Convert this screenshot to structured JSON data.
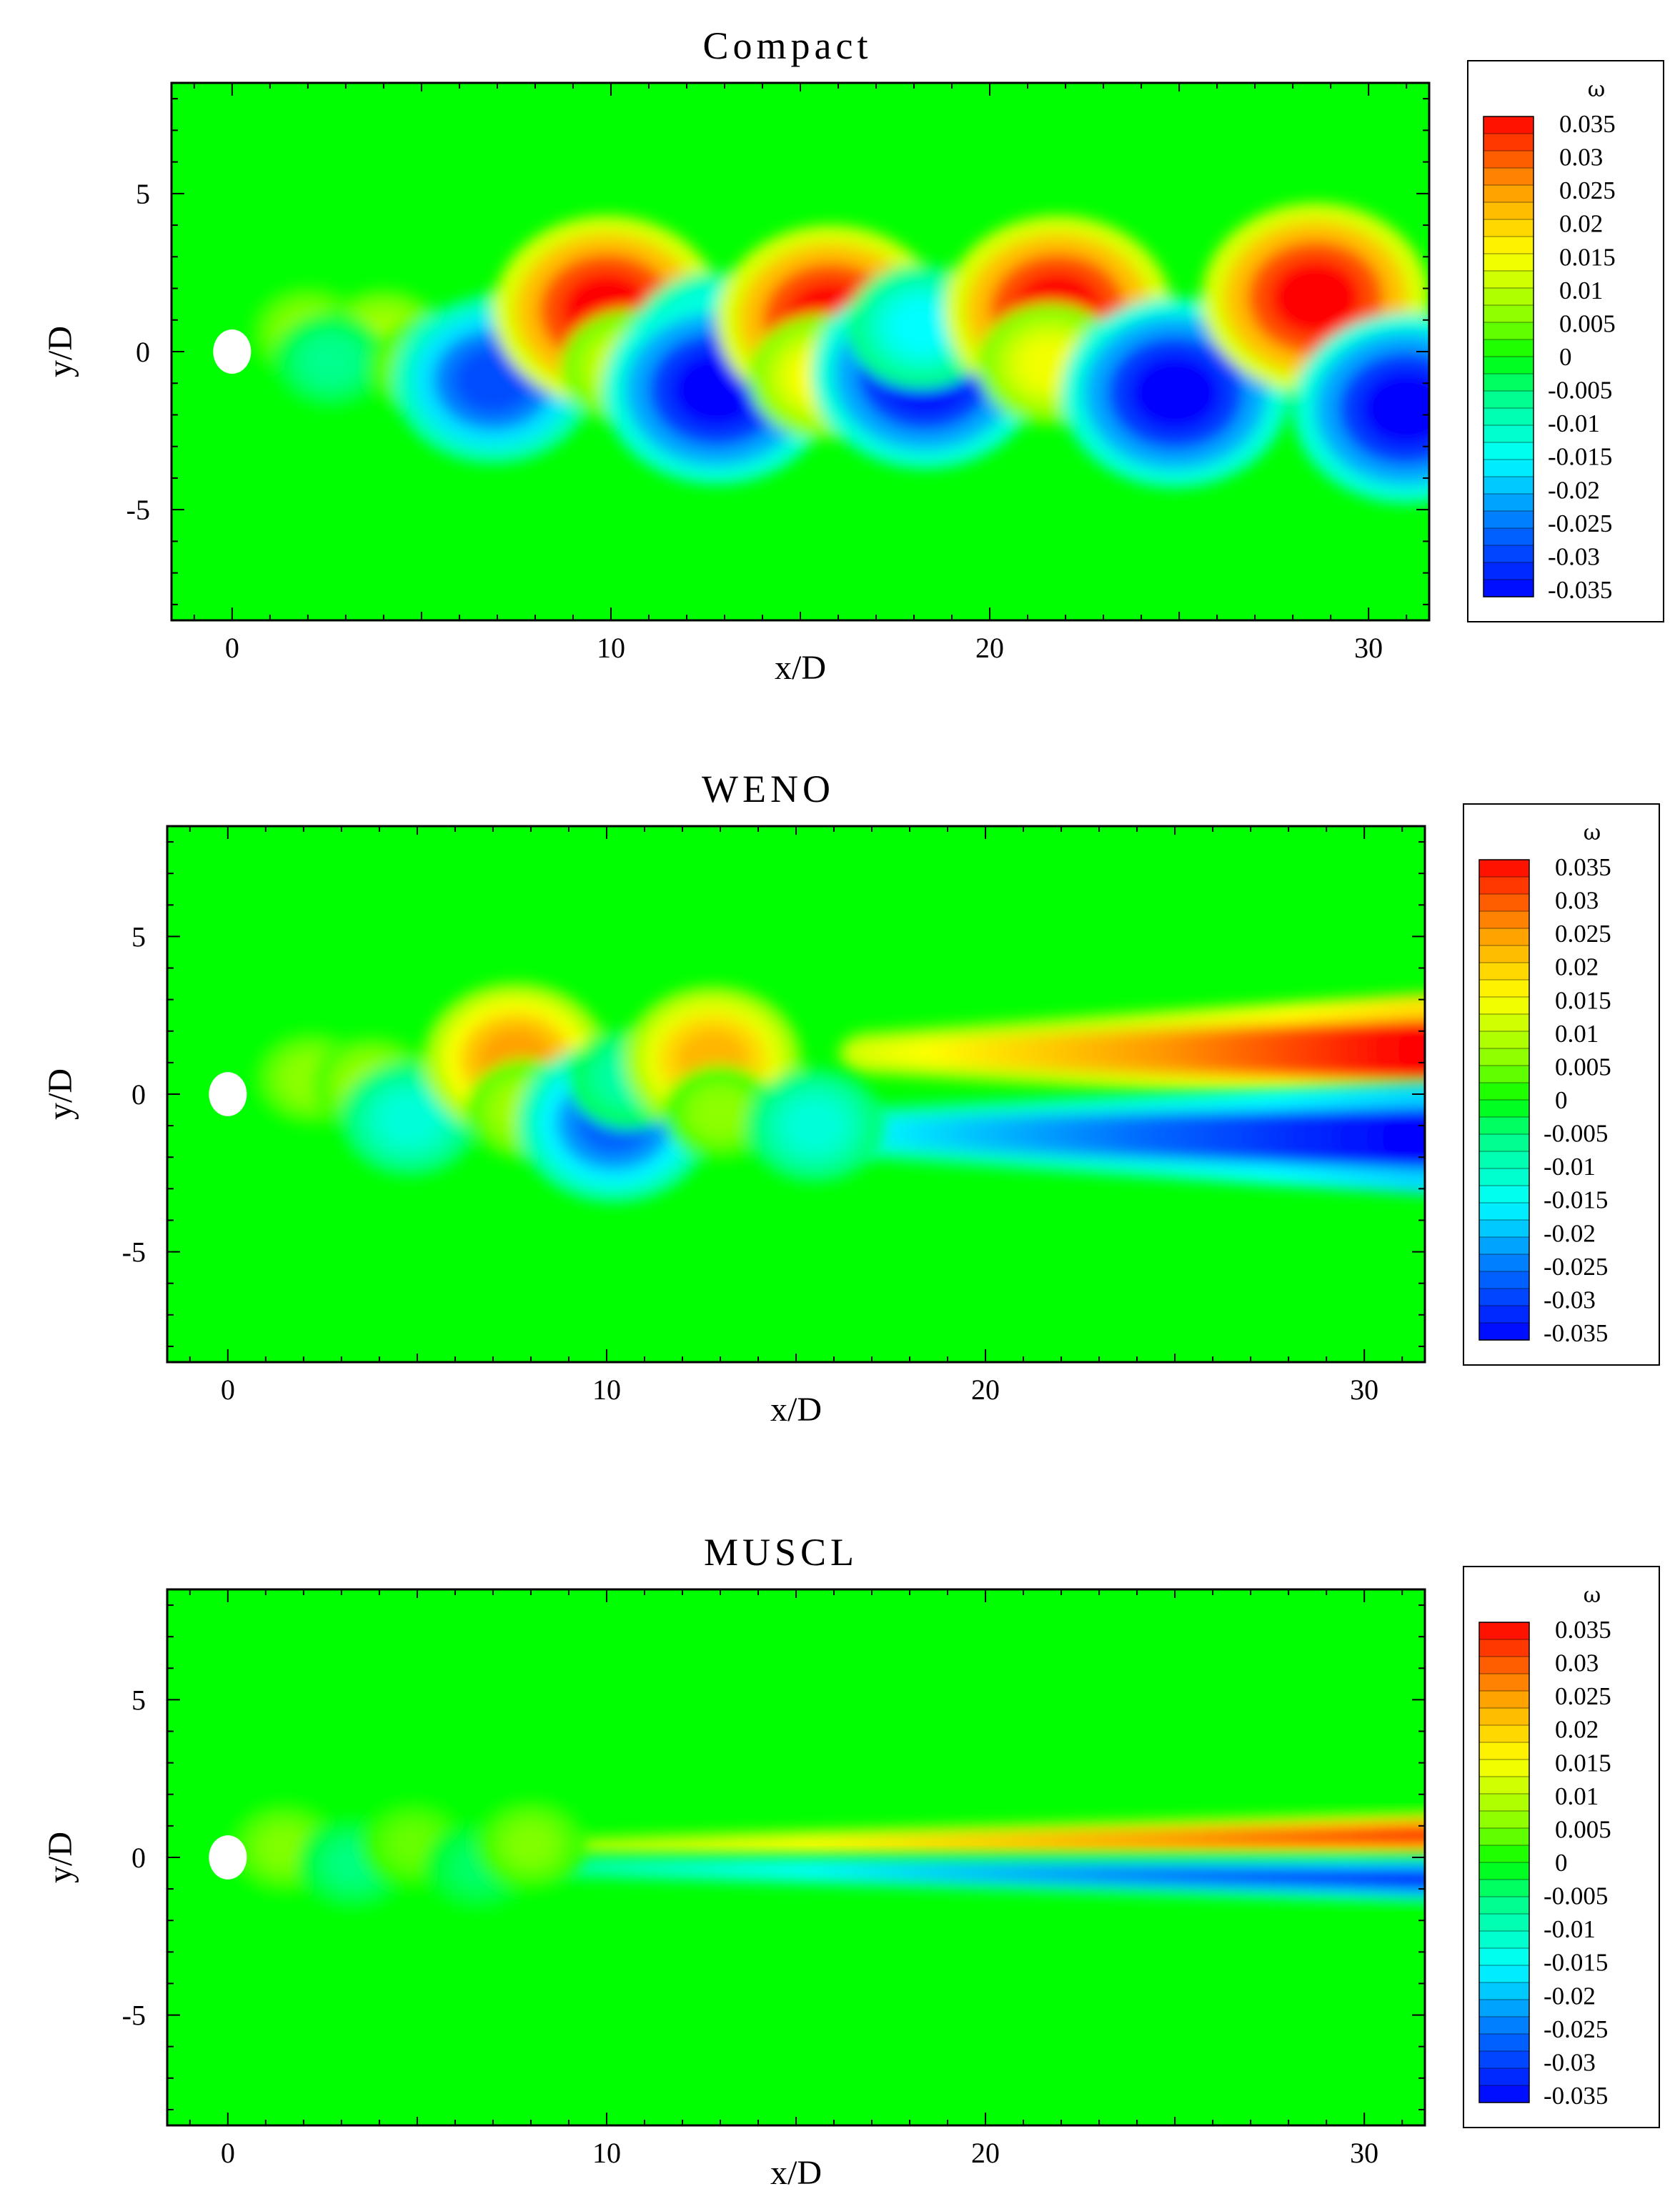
{
  "colors": {
    "background_green": "#00ff00",
    "positive_red": "#ff0000",
    "negative_blue": "#0000ff",
    "cylinder": "#ffffff"
  },
  "chart_data": [
    {
      "type": "heatmap",
      "title": "Compact",
      "xlabel": "x/D",
      "ylabel": "y/D",
      "xlim": [
        -1.6,
        31.6
      ],
      "ylim": [
        -8.5,
        8.5
      ],
      "xticks": [
        0,
        10,
        20,
        30
      ],
      "yticks": [
        5,
        0,
        -5
      ],
      "xtick_labels": [
        "0",
        "10",
        "20",
        "30"
      ],
      "ytick_labels": [
        "5",
        "0",
        "-5"
      ],
      "colorbar": {
        "title": "ω",
        "levels": [
          0.035,
          0.03,
          0.025,
          0.02,
          0.015,
          0.01,
          0.005,
          0,
          -0.005,
          -0.01,
          -0.015,
          -0.02,
          -0.025,
          -0.03,
          -0.035
        ],
        "labels": [
          "0.035",
          "0.03",
          "0.025",
          "0.02",
          "0.015",
          "0.01",
          "0.005",
          "0",
          "-0.005",
          "-0.01",
          "-0.015",
          "-0.02",
          "-0.025",
          "-0.03",
          "-0.035"
        ]
      },
      "cylinder": {
        "x": 0,
        "y": 0,
        "diameter": 1
      },
      "vortices": [
        {
          "x": 2.0,
          "y": 0.6,
          "w": 0.006
        },
        {
          "x": 4.0,
          "y": 0.4,
          "w": 0.008
        },
        {
          "x": 2.6,
          "y": -0.3,
          "w": -0.006
        },
        {
          "x": 5.2,
          "y": -0.5,
          "w": 0.007
        },
        {
          "x": 7.0,
          "y": -0.4,
          "w": -0.014
        },
        {
          "x": 7.3,
          "y": 0.4,
          "w": -0.008
        },
        {
          "x": 6.9,
          "y": -0.9,
          "w": -0.028
        },
        {
          "x": 9.9,
          "y": 1.3,
          "w": 0.035
        },
        {
          "x": 10.5,
          "y": -0.5,
          "w": 0.012
        },
        {
          "x": 12.8,
          "y": 0.2,
          "w": -0.022
        },
        {
          "x": 12.8,
          "y": -1.2,
          "w": -0.035
        },
        {
          "x": 15.8,
          "y": 1.0,
          "w": 0.035
        },
        {
          "x": 15.6,
          "y": -0.8,
          "w": 0.015
        },
        {
          "x": 18.3,
          "y": -0.7,
          "w": -0.035
        },
        {
          "x": 18.2,
          "y": 0.8,
          "w": -0.015
        },
        {
          "x": 21.8,
          "y": 1.3,
          "w": 0.035
        },
        {
          "x": 21.6,
          "y": -0.4,
          "w": 0.014
        },
        {
          "x": 24.9,
          "y": -1.3,
          "w": -0.035
        },
        {
          "x": 28.6,
          "y": 1.7,
          "w": 0.035
        },
        {
          "x": 31.0,
          "y": -1.8,
          "w": -0.035
        }
      ]
    },
    {
      "type": "heatmap",
      "title": "WENO",
      "xlabel": "x/D",
      "ylabel": "y/D",
      "xlim": [
        -1.6,
        31.6
      ],
      "ylim": [
        -8.5,
        8.5
      ],
      "xticks": [
        0,
        10,
        20,
        30
      ],
      "yticks": [
        5,
        0,
        -5
      ],
      "xtick_labels": [
        "0",
        "10",
        "20",
        "30"
      ],
      "ytick_labels": [
        "5",
        "0",
        "-5"
      ],
      "colorbar": {
        "title": "ω",
        "levels": [
          0.035,
          0.03,
          0.025,
          0.02,
          0.015,
          0.01,
          0.005,
          0,
          -0.005,
          -0.01,
          -0.015,
          -0.02,
          -0.025,
          -0.03,
          -0.035
        ],
        "labels": [
          "0.035",
          "0.03",
          "0.025",
          "0.02",
          "0.015",
          "0.01",
          "0.005",
          "0",
          "-0.005",
          "-0.01",
          "-0.015",
          "-0.02",
          "-0.025",
          "-0.03",
          "-0.035"
        ]
      },
      "cylinder": {
        "x": 0,
        "y": 0,
        "diameter": 1
      },
      "vortices": [
        {
          "x": 2.2,
          "y": 0.5,
          "w": 0.006
        },
        {
          "x": 3.8,
          "y": 0.3,
          "w": 0.007
        },
        {
          "x": 4.8,
          "y": -0.8,
          "w": -0.012
        },
        {
          "x": 7.6,
          "y": 1.1,
          "w": 0.024
        },
        {
          "x": 7.9,
          "y": -0.5,
          "w": 0.008
        },
        {
          "x": 10.2,
          "y": -0.9,
          "w": -0.026
        },
        {
          "x": 10.6,
          "y": 0.5,
          "w": -0.008
        },
        {
          "x": 12.8,
          "y": 1.1,
          "w": 0.022
        },
        {
          "x": 13.0,
          "y": -0.6,
          "w": 0.006
        },
        {
          "x": 15.5,
          "y": -1.0,
          "w": -0.012
        }
      ],
      "shear_layers": [
        {
          "x_start": 17.0,
          "x_end": 31.6,
          "y_center_start": 1.3,
          "y_center_end": 1.4,
          "width_start": 0.8,
          "width_end": 2.0,
          "w_start": 0.012,
          "w_end": 0.035
        },
        {
          "x_start": 15.0,
          "x_end": 31.6,
          "y_center_start": -1.2,
          "y_center_end": -1.4,
          "width_start": 0.8,
          "width_end": 2.0,
          "w_start": -0.012,
          "w_end": -0.035
        }
      ]
    },
    {
      "type": "heatmap",
      "title": "MUSCL",
      "xlabel": "x/D",
      "ylabel": "y/D",
      "xlim": [
        -1.6,
        31.6
      ],
      "ylim": [
        -8.5,
        8.5
      ],
      "xticks": [
        0,
        10,
        20,
        30
      ],
      "yticks": [
        5,
        0,
        -5
      ],
      "xtick_labels": [
        "0",
        "10",
        "20",
        "30"
      ],
      "ytick_labels": [
        "5",
        "0",
        "-5"
      ],
      "colorbar": {
        "title": "ω",
        "levels": [
          0.035,
          0.03,
          0.025,
          0.02,
          0.015,
          0.01,
          0.005,
          0,
          -0.005,
          -0.01,
          -0.015,
          -0.02,
          -0.025,
          -0.03,
          -0.035
        ],
        "labels": [
          "0.035",
          "0.03",
          "0.025",
          "0.02",
          "0.015",
          "0.01",
          "0.005",
          "0",
          "-0.005",
          "-0.01",
          "-0.015",
          "-0.02",
          "-0.025",
          "-0.03",
          "-0.035"
        ]
      },
      "cylinder": {
        "x": 0,
        "y": 0,
        "diameter": 1
      },
      "vortices": [
        {
          "x": 1.5,
          "y": 0.3,
          "w": 0.005
        },
        {
          "x": 3.3,
          "y": -0.2,
          "w": -0.005
        },
        {
          "x": 4.9,
          "y": 0.4,
          "w": 0.004
        },
        {
          "x": 6.6,
          "y": -0.3,
          "w": -0.004
        },
        {
          "x": 8.0,
          "y": 0.4,
          "w": 0.005
        }
      ],
      "shear_layers": [
        {
          "x_start": 9.0,
          "x_end": 31.6,
          "y_center_start": 0.3,
          "y_center_end": 0.7,
          "width_start": 0.4,
          "width_end": 0.8,
          "w_start": 0.008,
          "w_end": 0.032
        },
        {
          "x_start": 9.0,
          "x_end": 31.6,
          "y_center_start": -0.3,
          "y_center_end": -0.7,
          "width_start": 0.4,
          "width_end": 0.8,
          "w_start": -0.008,
          "w_end": -0.032
        }
      ]
    }
  ]
}
